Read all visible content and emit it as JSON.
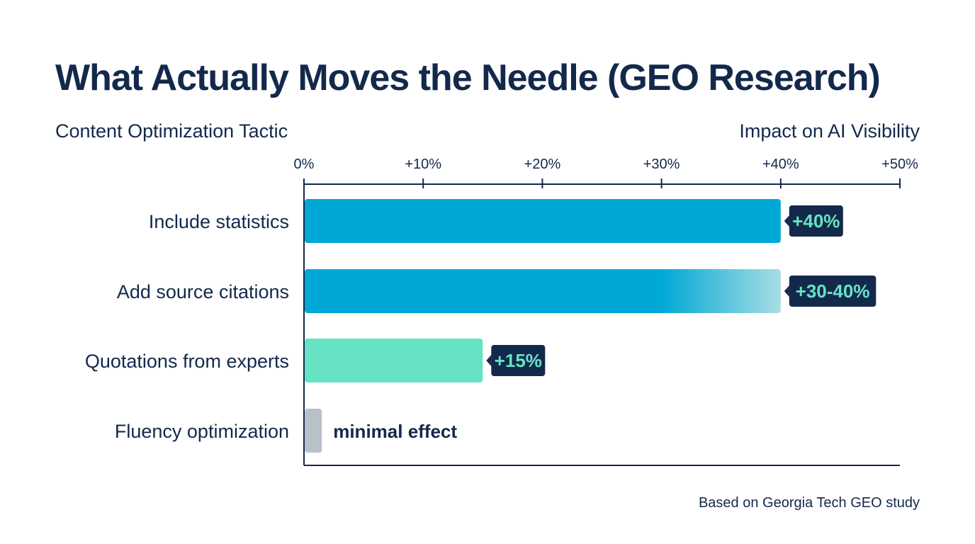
{
  "chart_data": {
    "type": "bar",
    "orientation": "horizontal",
    "title": "What Actually Moves the Needle (GEO Research)",
    "ylabel": "Content Optimization Tactic",
    "xlabel": "Impact on AI Visibility",
    "xlim": [
      0,
      50
    ],
    "xticks": [
      0,
      10,
      20,
      30,
      40,
      50
    ],
    "xtick_labels": [
      "0%",
      "+10%",
      "+20%",
      "+30%",
      "+40%",
      "+50%"
    ],
    "grid": false,
    "categories": [
      "Include statistics",
      "Add source citations",
      "Quotations from experts",
      "Fluency optimization"
    ],
    "values": [
      40,
      40,
      15,
      1.5
    ],
    "ranges": [
      null,
      [
        30,
        40
      ],
      null,
      null
    ],
    "data_labels": [
      "+40%",
      "+30-40%",
      "+15%",
      "minimal effect"
    ],
    "colors": [
      "#00a8d6",
      "#00a8d6",
      "#66e3c4",
      "#b9c1c8"
    ],
    "range_fade_color": "#a8dde3",
    "label_bg": "#13294b",
    "label_text": "#66e3c4",
    "footnote": "Based on Georgia Tech GEO study"
  }
}
